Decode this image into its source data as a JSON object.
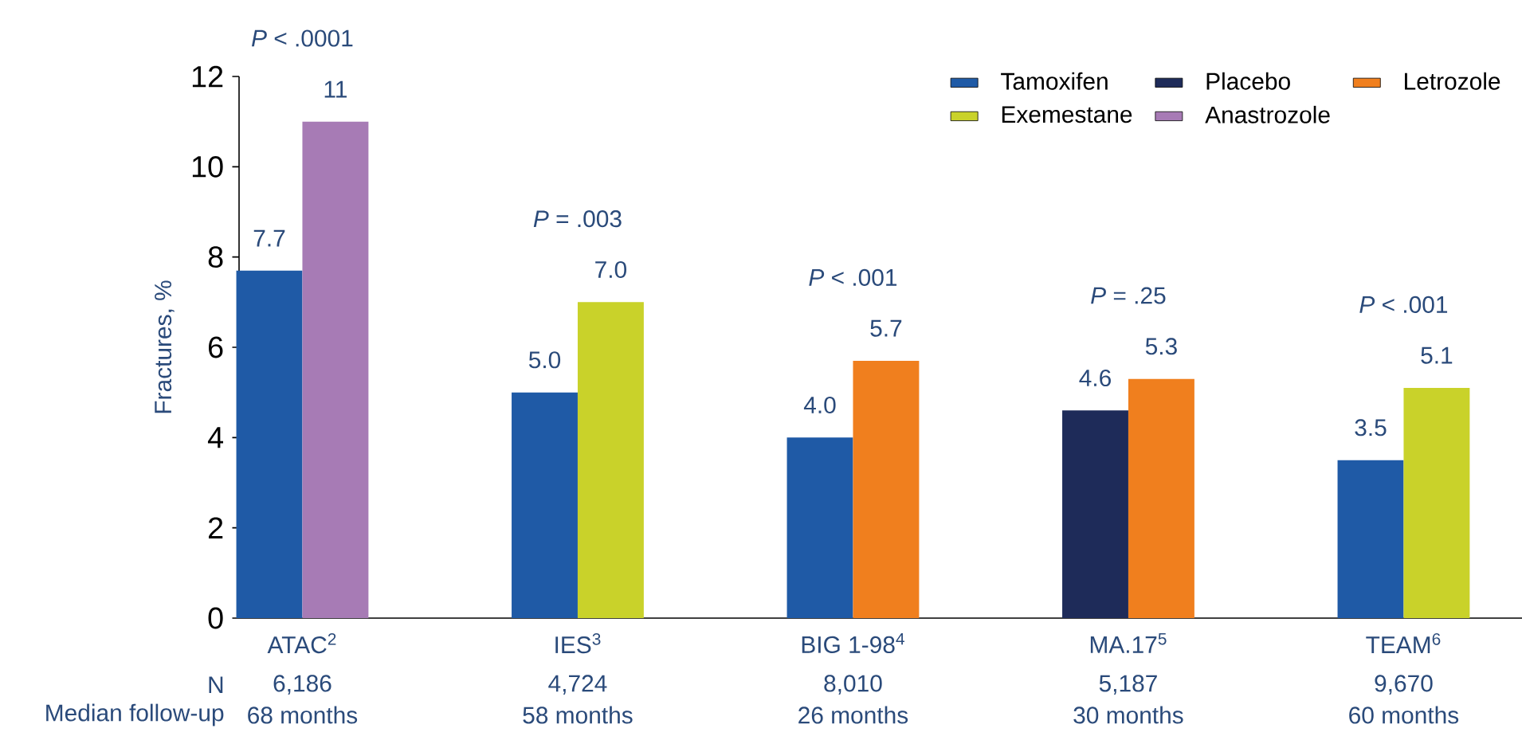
{
  "chart_data": {
    "type": "bar",
    "ylabel": "Fractures, %",
    "categories": [
      "ATAC$^{2}$",
      "IES$^{3}$",
      "BIG 1-98$^{4}$",
      "MA.17$^{5}$",
      "TEAM$^{6}$"
    ],
    "series": [
      {
        "name": "Tamoxifen",
        "color": "#1f5aa6",
        "values": [
          7.7,
          5.0,
          4.0,
          null,
          3.5
        ],
        "value_labels": [
          "7.7",
          "5.0",
          "4.0",
          null,
          "3.5"
        ]
      },
      {
        "name": "Placebo",
        "color": "#1e2b59",
        "values": [
          null,
          null,
          null,
          4.6,
          null
        ],
        "value_labels": [
          null,
          null,
          null,
          "4.6",
          null
        ]
      },
      {
        "name": "Letrozole",
        "color": "#f07f1e",
        "values": [
          null,
          null,
          5.7,
          5.3,
          null
        ],
        "value_labels": [
          null,
          null,
          "5.7",
          "5.3",
          null
        ]
      },
      {
        "name": "Exemestane",
        "color": "#c9d22a",
        "values": [
          null,
          7.0,
          null,
          null,
          5.1
        ],
        "value_labels": [
          null,
          "7.0",
          null,
          null,
          "5.1"
        ]
      },
      {
        "name": "Anastrozole",
        "color": "#a77bb5",
        "values": [
          11,
          null,
          null,
          null,
          null
        ],
        "value_labels": [
          "11",
          null,
          null,
          null,
          null
        ]
      }
    ],
    "ylim": [
      0,
      12
    ],
    "yticks": [
      0,
      2,
      4,
      6,
      8,
      10,
      12
    ],
    "legend": "top right",
    "annotations": [
      "*P* < .0001",
      "*P* = .003",
      "*P* < .001",
      "*P* = .25",
      "*P* < .001",
      "N",
      "6,186",
      "4,724",
      "8,010",
      "5,187",
      "9,670",
      "Median follow-up",
      "68 months",
      "58 months",
      "26 months",
      "30 months",
      "60 months"
    ]
  }
}
